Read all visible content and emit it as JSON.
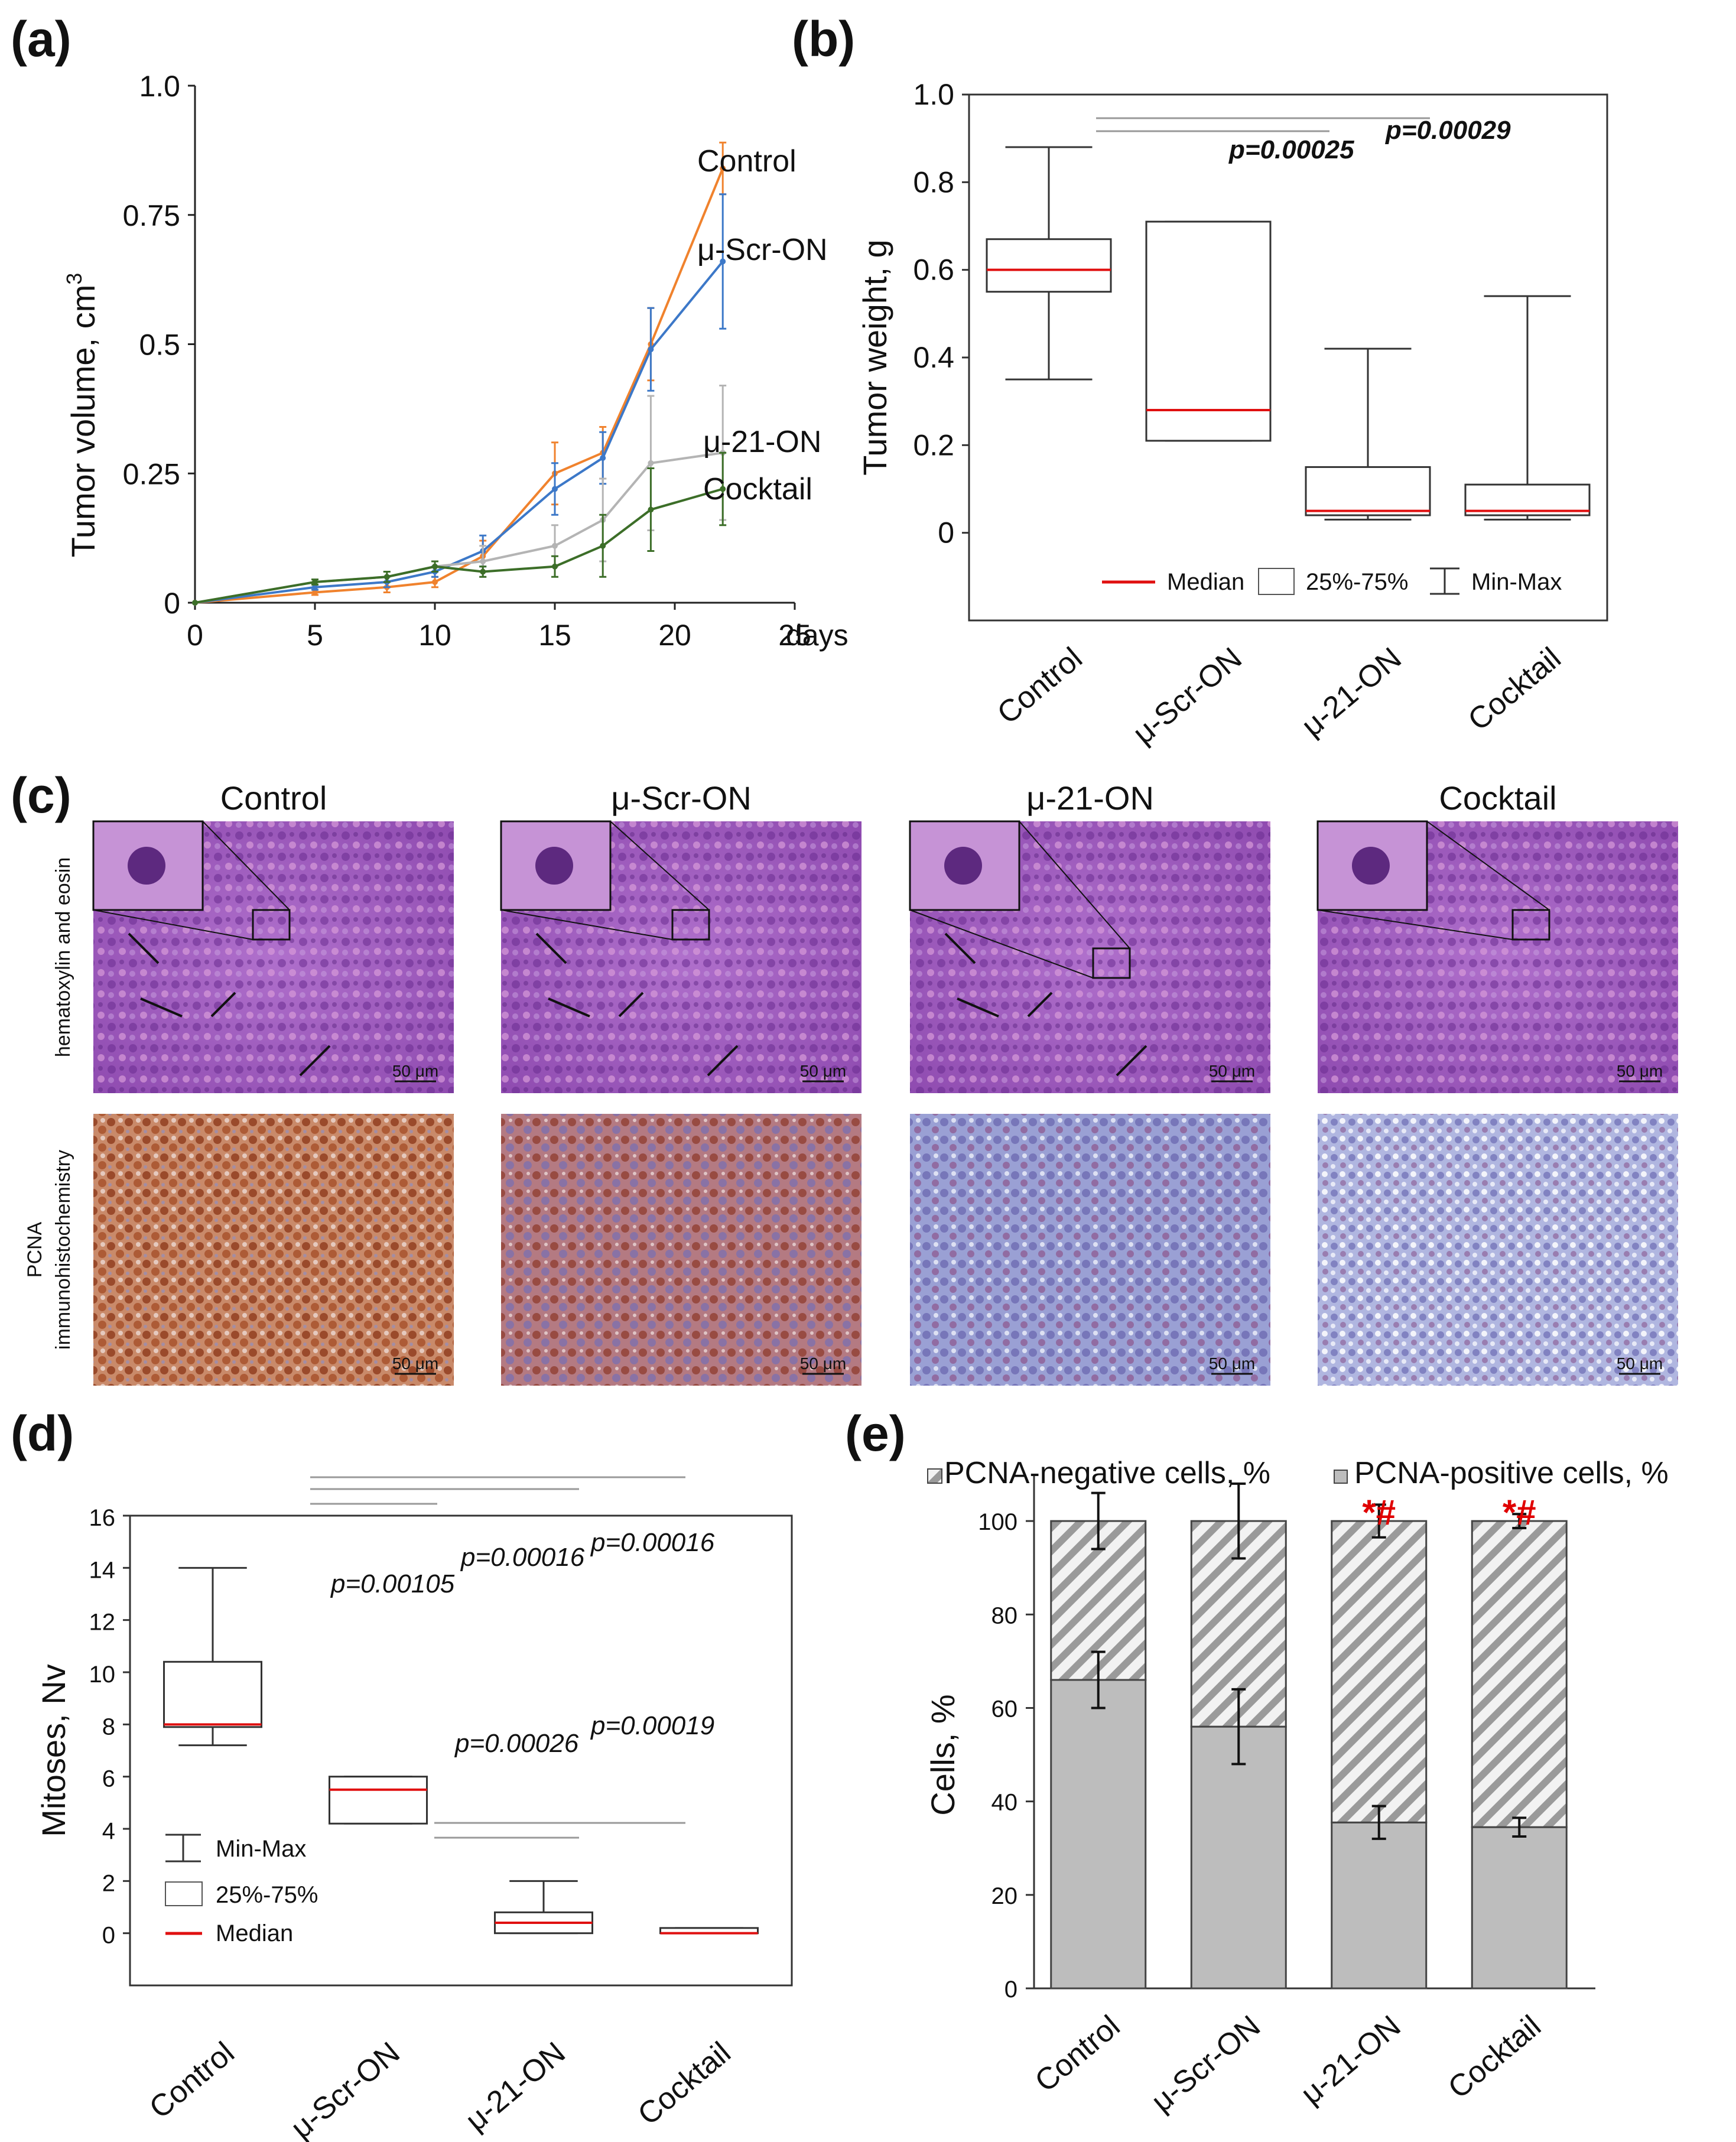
{
  "panels": {
    "a": {
      "label": "(a)"
    },
    "b": {
      "label": "(b)"
    },
    "c": {
      "label": "(c)"
    },
    "d": {
      "label": "(d)"
    },
    "e": {
      "label": "(e)"
    }
  },
  "colors": {
    "control": "#f0822d",
    "scr": "#3c78c8",
    "mu21": "#b4b4b4",
    "cocktail": "#3c6e28",
    "median": "#e01010",
    "bar_pos": "#bdbdbd",
    "he_bg": "#a15bbf",
    "ihc_brown": "#9c4a2a",
    "ihc_blue": "#8a8fc9"
  },
  "chart_data": [
    {
      "id": "a",
      "type": "line",
      "xlabel": "days",
      "ylabel": "Tumor volume, cm",
      "ylabel_sup": "3",
      "xlim": [
        0,
        25
      ],
      "ylim": [
        0,
        1.0
      ],
      "xticks": [
        "0",
        "5",
        "10",
        "15",
        "20",
        "25"
      ],
      "yticks": [
        "0",
        "0.25",
        "0.5",
        "0.75",
        "1.0"
      ],
      "x": [
        0,
        5,
        8,
        10,
        12,
        15,
        17,
        19,
        22
      ],
      "series": [
        {
          "name": "Control",
          "values": [
            0,
            0.02,
            0.03,
            0.04,
            0.09,
            0.25,
            0.29,
            0.5,
            0.84
          ],
          "err": [
            0,
            0.005,
            0.01,
            0.01,
            0.03,
            0.06,
            0.05,
            0.07,
            0.05
          ]
        },
        {
          "name": "μ-Scr-ON",
          "values": [
            0,
            0.03,
            0.04,
            0.06,
            0.1,
            0.22,
            0.28,
            0.49,
            0.66
          ],
          "err": [
            0,
            0.005,
            0.01,
            0.01,
            0.03,
            0.05,
            0.05,
            0.08,
            0.13
          ]
        },
        {
          "name": "μ-21-ON",
          "values": [
            0,
            0.04,
            0.05,
            0.07,
            0.08,
            0.11,
            0.16,
            0.27,
            0.29
          ],
          "err": [
            0,
            0.005,
            0.01,
            0.01,
            0.03,
            0.04,
            0.08,
            0.13,
            0.13
          ]
        },
        {
          "name": "Cocktail",
          "values": [
            0,
            0.04,
            0.05,
            0.07,
            0.06,
            0.07,
            0.11,
            0.18,
            0.22
          ],
          "err": [
            0,
            0.005,
            0.01,
            0.01,
            0.01,
            0.02,
            0.06,
            0.08,
            0.07
          ]
        }
      ]
    },
    {
      "id": "b",
      "type": "box",
      "ylabel": "Tumor weight, g",
      "ylim": [
        -0.2,
        1.0
      ],
      "yticks": [
        "0",
        "0.2",
        "0.4",
        "0.6",
        "0.8",
        "1.0"
      ],
      "categories": [
        "Control",
        "μ-Scr-ON",
        "μ-21-ON",
        "Cocktail"
      ],
      "boxes": [
        {
          "min": 0.35,
          "q1": 0.55,
          "median": 0.6,
          "q3": 0.67,
          "max": 0.88
        },
        {
          "min": 0.21,
          "q1": 0.21,
          "median": 0.28,
          "q3": 0.71,
          "max": 0.71
        },
        {
          "min": 0.03,
          "q1": 0.04,
          "median": 0.05,
          "q3": 0.15,
          "max": 0.42
        },
        {
          "min": 0.03,
          "q1": 0.04,
          "median": 0.05,
          "q3": 0.11,
          "max": 0.54
        }
      ],
      "pvalues": [
        "p=0.00025",
        "p=0.00029"
      ],
      "legend": [
        "Median",
        "25%-75%",
        "Min-Max"
      ]
    },
    {
      "id": "d",
      "type": "box",
      "ylabel": "Mitoses, Nv",
      "ylim": [
        -2,
        16
      ],
      "yticks": [
        "0",
        "2",
        "4",
        "6",
        "8",
        "10",
        "12",
        "14",
        "16"
      ],
      "categories": [
        "Control",
        "μ-Scr-ON",
        "μ-21-ON",
        "Cocktail"
      ],
      "boxes": [
        {
          "min": 7.2,
          "q1": 7.9,
          "median": 8.0,
          "q3": 10.4,
          "max": 14
        },
        {
          "min": 4.2,
          "q1": 4.2,
          "median": 5.5,
          "q3": 6.0,
          "max": 6.0
        },
        {
          "min": 0,
          "q1": 0,
          "median": 0.4,
          "q3": 0.8,
          "max": 2.0
        },
        {
          "min": 0,
          "q1": 0,
          "median": 0,
          "q3": 0.2,
          "max": 0.2
        }
      ],
      "pvalues": [
        "p=0.00105",
        "p=0.00016",
        "p=0.00016",
        "p=0.00026",
        "p=0.00019"
      ],
      "legend": [
        "Min-Max",
        "25%-75%",
        "Median"
      ]
    },
    {
      "id": "e",
      "type": "bar",
      "stacked": true,
      "ylabel": "Cells, %",
      "ylim": [
        0,
        110
      ],
      "yticks": [
        "0",
        "20",
        "40",
        "60",
        "80",
        "100"
      ],
      "categories": [
        "Control",
        "μ-Scr-ON",
        "μ-21-ON",
        "Cocktail"
      ],
      "series": [
        {
          "name": "PCNA-positive cells, %",
          "values": [
            66,
            56,
            35.5,
            34.5
          ],
          "err": [
            6,
            8,
            3.5,
            2
          ]
        },
        {
          "name": "PCNA-negative cells, %",
          "values": [
            34,
            44,
            64.5,
            65.5
          ],
          "err": [
            6,
            8,
            3.5,
            1.5
          ]
        }
      ],
      "annotations": [
        "",
        "",
        "*#",
        "*#"
      ]
    }
  ],
  "histology": {
    "columns": [
      "Control",
      "μ-Scr-ON",
      "μ-21-ON",
      "Cocktail"
    ],
    "row_labels": [
      "hematoxylin and eosin",
      "PCNA",
      "immunohistochemistry"
    ],
    "scale_bar": "50 μm"
  }
}
